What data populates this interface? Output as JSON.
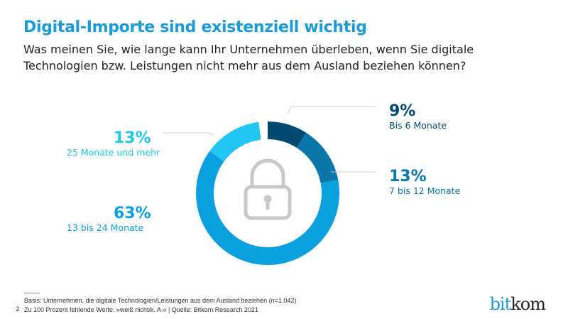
{
  "title": "Digital-Importe sind existenziell wichtig",
  "subtitle": "Was meinen Sie, wie lange kann Ihr Unternehmen überleben, wenn Sie digitale Technologien bzw. Leistungen nicht mehr aus dem Ausland beziehen können?",
  "chart_data": {
    "type": "pie",
    "donut": true,
    "center_icon": "lock-icon",
    "slices": [
      {
        "label": "Bis 6 Monate",
        "value": 9,
        "display": "9%",
        "color": "#00496f"
      },
      {
        "label": "7 bis 12 Monate",
        "value": 13,
        "display": "13%",
        "color": "#0a76aa"
      },
      {
        "label": "13 bis 24 Monate",
        "value": 63,
        "display": "63%",
        "color": "#0a9fdf"
      },
      {
        "label": "25 Monate und mehr",
        "value": 13,
        "display": "13%",
        "color": "#22c6f3"
      }
    ]
  },
  "footer": {
    "basis": "Basis: Unternehmen, die digitale Technologien/Leistungen aus dem Ausland beziehen (n=1.042)",
    "note": "Zu 100 Prozent fehlende Werte: »weiß nicht/k. A.« | Quelle: Bitkom Research 2021",
    "page": "2"
  },
  "logo": {
    "text_a": "bit",
    "text_b": "kom"
  }
}
